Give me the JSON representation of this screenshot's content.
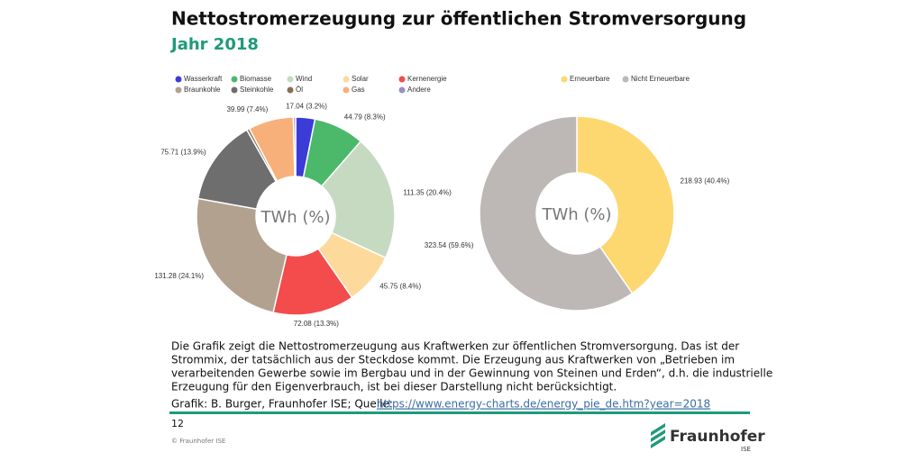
{
  "header": {
    "title": "Nettostromerzeugung zur öffentlichen Stromversorgung",
    "subtitle": "Jahr 2018"
  },
  "chart_data": [
    {
      "type": "pie",
      "center_label": "TWh (%)",
      "categories": [
        "Wasserkraft",
        "Biomasse",
        "Wind",
        "Solar",
        "Kernenergie",
        "Braunkohle",
        "Steinkohle",
        "Öl",
        "Gas",
        "Andere"
      ],
      "values": [
        17.04,
        44.79,
        111.35,
        45.75,
        72.08,
        131.28,
        75.71,
        2.5,
        39.99,
        1.98
      ],
      "value_labels": [
        "17.04 (3.2%)",
        "44.79 (8.3%)",
        "111.35 (20.4%)",
        "45.75 (8.4%)",
        "72.08 (13.3%)",
        "131.28 (24.1%)",
        "75.71 (13.9%)",
        null,
        "39.99 (7.4%)",
        null
      ],
      "colors": [
        "#3b3bd8",
        "#4cb86a",
        "#c6d9c1",
        "#fdd99b",
        "#f44c4c",
        "#b3a190",
        "#6e6e6e",
        "#8b6e55",
        "#f8b07a",
        "#9b8ec4"
      ]
    },
    {
      "type": "pie",
      "center_label": "TWh (%)",
      "categories": [
        "Erneuerbare",
        "Nicht Erneuerbare"
      ],
      "values": [
        218.93,
        323.54
      ],
      "value_labels": [
        "218.93 (40.4%)",
        "323.54 (59.6%)"
      ],
      "colors": [
        "#fdd870",
        "#bdb8b5"
      ]
    }
  ],
  "caption": [
    "Die Grafik zeigt die Nettostromerzeugung aus Kraftwerken zur öffentlichen Stromversorgung. Das ist der",
    "Strommix, der tatsächlich aus der Steckdose kommt. Die Erzeugung aus Kraftwerken von „Betrieben im",
    "verarbeitenden Gewerbe sowie im Bergbau und in der Gewinnung von Steinen und Erden“, d.h. die industrielle",
    "Erzeugung für den Eigenverbrauch, ist bei dieser Darstellung nicht berücksichtigt."
  ],
  "source": {
    "text": "Grafik: B. Burger, Fraunhofer ISE; Quelle:",
    "link": "https://www.energy-charts.de/energy_pie_de.htm?year=2018"
  },
  "footer": {
    "page": "12",
    "copyright": "© Fraunhofer ISE",
    "logo": "Fraunhofer",
    "logo_sub": "ISE"
  }
}
